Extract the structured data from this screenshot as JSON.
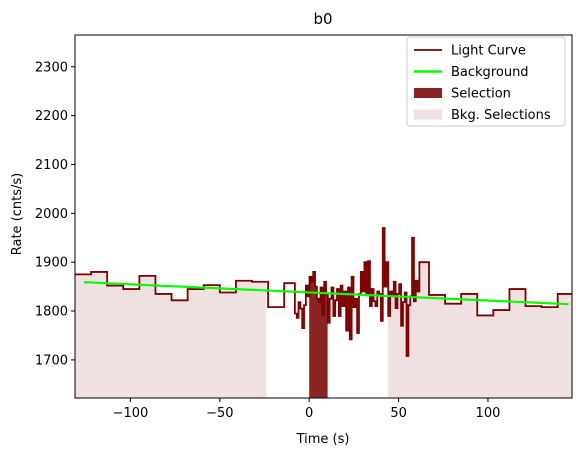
{
  "chart_data": {
    "type": "line",
    "title": "b0",
    "xlabel": "Time (s)",
    "ylabel": "Rate (cnts/s)",
    "xlim": [
      -131,
      147
    ],
    "ylim": [
      1622,
      2365
    ],
    "xticks": [
      -100,
      -50,
      0,
      50,
      100
    ],
    "xtick_labels": [
      "−100",
      "−50",
      "0",
      "50",
      "100"
    ],
    "yticks": [
      1700,
      1800,
      1900,
      2000,
      2100,
      2200,
      2300
    ],
    "ytick_labels": [
      "1700",
      "1800",
      "1900",
      "2000",
      "2100",
      "2200",
      "2300"
    ],
    "grid": false,
    "legend_position": "top-right",
    "legend": [
      {
        "label": "Light Curve",
        "kind": "line",
        "color": "#7f0000"
      },
      {
        "label": "Background",
        "kind": "line",
        "color": "#00ff00"
      },
      {
        "label": "Selection",
        "kind": "patch",
        "color": "#8b2323"
      },
      {
        "label": "Bkg. Selections",
        "kind": "patch",
        "color": "#efe1e1"
      }
    ],
    "bkg_selections": [
      [
        -131,
        -24
      ],
      [
        44,
        147
      ]
    ],
    "selection": [
      0,
      10.3
    ],
    "background": {
      "x": [
        -126,
        145
      ],
      "y": [
        1859,
        1814
      ],
      "color": "#00ff00"
    },
    "light_curve": {
      "color": "#7f0000",
      "steps": [
        [
          -131,
          1875
        ],
        [
          -122,
          1880
        ],
        [
          -113,
          1852
        ],
        [
          -104,
          1845
        ],
        [
          -95,
          1872
        ],
        [
          -86,
          1835
        ],
        [
          -77,
          1822
        ],
        [
          -68,
          1845
        ],
        [
          -59,
          1853
        ],
        [
          -50,
          1838
        ],
        [
          -41,
          1862
        ],
        [
          -32,
          1860
        ],
        [
          -23,
          1808
        ],
        [
          -14,
          1857
        ],
        [
          -5,
          1865
        ],
        [
          4,
          1834
        ],
        [
          13,
          1838
        ],
        [
          22,
          1842
        ],
        [
          31,
          1834
        ],
        [
          40,
          1833
        ],
        [
          49,
          1843
        ],
        [
          58,
          1820
        ],
        [
          67,
          1833
        ],
        [
          76,
          1815
        ],
        [
          85,
          1835
        ],
        [
          94,
          1791
        ],
        [
          103,
          1802
        ],
        [
          112,
          1845
        ],
        [
          121,
          1810
        ],
        [
          130,
          1808
        ],
        [
          139,
          1835
        ]
      ],
      "burst_start": -8,
      "burst_end": 62,
      "burst_step": 1.024,
      "burst_values": [
        1795,
        1786,
        1818,
        1805,
        1765,
        1812,
        1852,
        1830,
        1870,
        1860,
        1880,
        1850,
        1825,
        1818,
        1848,
        1792,
        1860,
        1835,
        1776,
        1825,
        1848,
        1790,
        1822,
        1845,
        1790,
        1852,
        1810,
        1840,
        1760,
        1848,
        1742,
        1870,
        1808,
        1825,
        1755,
        1835,
        1880,
        1840,
        1900,
        1832,
        1902,
        1810,
        1845,
        1820,
        1810,
        1840,
        1835,
        1780,
        1970,
        1850,
        1900,
        1790,
        1840,
        1830,
        1860,
        1806,
        1835,
        1855,
        1770,
        1818,
        1838,
        1708,
        1812,
        1830,
        1950,
        1820,
        1862,
        1840,
        1900
      ]
    }
  }
}
